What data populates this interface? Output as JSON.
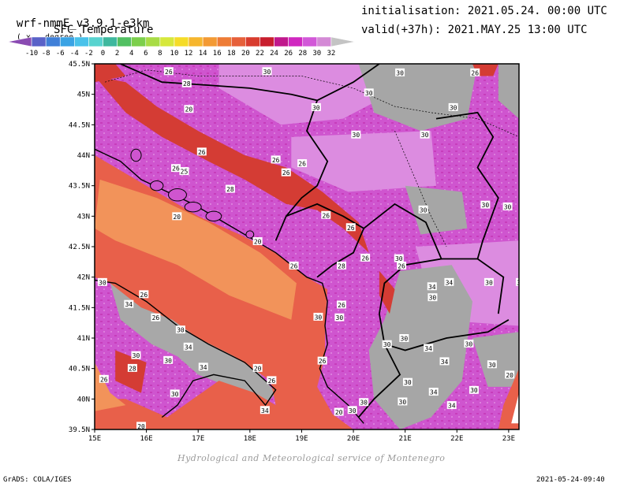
{
  "header": {
    "model": "wrf-nmmE_v3.9.1-e3km",
    "unit": "( x . degree )",
    "subtitle": "SFC Temperature",
    "init": "initialisation: 2021.05.24. 00:00 UTC",
    "valid": "valid(+37h): 2021.MAY.25 13:00 UTC"
  },
  "colorbar": {
    "ticks": [
      "-10",
      "-8",
      "-6",
      "-4",
      "-2",
      "0",
      "2",
      "4",
      "6",
      "8",
      "10",
      "12",
      "14",
      "16",
      "18",
      "20",
      "22",
      "24",
      "26",
      "28",
      "30",
      "32"
    ],
    "colors": [
      "#8a4bb2",
      "#5a62c8",
      "#4080d8",
      "#3aa3e4",
      "#49c2ea",
      "#58d3cf",
      "#3eb89e",
      "#52c062",
      "#7ccf4c",
      "#a8dc46",
      "#d6e83c",
      "#f5dc28",
      "#f6b62e",
      "#f39a34",
      "#ee7c36",
      "#e6603a",
      "#d83c2e",
      "#c81e2e",
      "#c0188c",
      "#d028c0",
      "#d258d8",
      "#d48ad6",
      "#c4c4c4"
    ]
  },
  "map": {
    "lat_labels": [
      "45.5N",
      "45N",
      "44.5N",
      "44N",
      "43.5N",
      "43N",
      "42.5N",
      "42N",
      "41.5N",
      "41N",
      "40.5N",
      "40N",
      "39.5N"
    ],
    "lon_labels": [
      "15E",
      "16E",
      "17E",
      "18E",
      "19E",
      "20E",
      "21E",
      "22E",
      "23E"
    ],
    "contour_labels": [
      {
        "t": "26",
        "lon": 16.43,
        "lat": 45.38
      },
      {
        "t": "28",
        "lon": 16.78,
        "lat": 45.18
      },
      {
        "t": "30",
        "lon": 18.33,
        "lat": 45.38
      },
      {
        "t": "26",
        "lon": 22.35,
        "lat": 45.36
      },
      {
        "t": "30",
        "lon": 20.9,
        "lat": 45.36
      },
      {
        "t": "30",
        "lon": 20.3,
        "lat": 45.03
      },
      {
        "t": "30",
        "lon": 19.28,
        "lat": 44.79
      },
      {
        "t": "30",
        "lon": 21.93,
        "lat": 44.79
      },
      {
        "t": "20",
        "lon": 16.82,
        "lat": 44.76
      },
      {
        "t": "30",
        "lon": 20.05,
        "lat": 44.34
      },
      {
        "t": "30",
        "lon": 21.38,
        "lat": 44.34
      },
      {
        "t": "26",
        "lon": 17.07,
        "lat": 44.06
      },
      {
        "t": "26",
        "lon": 18.5,
        "lat": 43.93
      },
      {
        "t": "26",
        "lon": 19.01,
        "lat": 43.87
      },
      {
        "t": "26",
        "lon": 16.57,
        "lat": 43.79
      },
      {
        "t": "25",
        "lon": 16.73,
        "lat": 43.74
      },
      {
        "t": "26",
        "lon": 18.7,
        "lat": 43.72
      },
      {
        "t": "28",
        "lon": 17.62,
        "lat": 43.45
      },
      {
        "t": "30",
        "lon": 22.55,
        "lat": 43.19
      },
      {
        "t": "30",
        "lon": 22.98,
        "lat": 43.16
      },
      {
        "t": "26",
        "lon": 23.31,
        "lat": 43.14
      },
      {
        "t": "30",
        "lon": 21.35,
        "lat": 43.11
      },
      {
        "t": "26",
        "lon": 19.47,
        "lat": 43.02
      },
      {
        "t": "20",
        "lon": 16.59,
        "lat": 43.0
      },
      {
        "t": "26",
        "lon": 19.95,
        "lat": 42.82
      },
      {
        "t": "20",
        "lon": 18.15,
        "lat": 42.59
      },
      {
        "t": "30",
        "lon": 20.88,
        "lat": 42.31
      },
      {
        "t": "26",
        "lon": 20.23,
        "lat": 42.32
      },
      {
        "t": "26",
        "lon": 18.85,
        "lat": 42.19
      },
      {
        "t": "28",
        "lon": 19.77,
        "lat": 42.19
      },
      {
        "t": "26",
        "lon": 20.93,
        "lat": 42.19
      },
      {
        "t": "30",
        "lon": 15.15,
        "lat": 41.92
      },
      {
        "t": "34",
        "lon": 21.52,
        "lat": 41.85
      },
      {
        "t": "34",
        "lon": 21.85,
        "lat": 41.92
      },
      {
        "t": "30",
        "lon": 22.62,
        "lat": 41.92
      },
      {
        "t": "30",
        "lon": 23.23,
        "lat": 41.92
      },
      {
        "t": "26",
        "lon": 15.95,
        "lat": 41.72
      },
      {
        "t": "34",
        "lon": 15.66,
        "lat": 41.56
      },
      {
        "t": "30",
        "lon": 21.53,
        "lat": 41.67
      },
      {
        "t": "26",
        "lon": 19.77,
        "lat": 41.55
      },
      {
        "t": "26",
        "lon": 16.18,
        "lat": 41.34
      },
      {
        "t": "30",
        "lon": 19.32,
        "lat": 41.35
      },
      {
        "t": "30",
        "lon": 19.73,
        "lat": 41.34
      },
      {
        "t": "30",
        "lon": 16.66,
        "lat": 41.14
      },
      {
        "t": "30",
        "lon": 20.98,
        "lat": 41.0
      },
      {
        "t": "30",
        "lon": 20.65,
        "lat": 40.9
      },
      {
        "t": "34",
        "lon": 16.81,
        "lat": 40.86
      },
      {
        "t": "34",
        "lon": 21.45,
        "lat": 40.84
      },
      {
        "t": "30",
        "lon": 22.23,
        "lat": 40.91
      },
      {
        "t": "30",
        "lon": 15.8,
        "lat": 40.72
      },
      {
        "t": "30",
        "lon": 16.42,
        "lat": 40.64
      },
      {
        "t": "26",
        "lon": 19.4,
        "lat": 40.63
      },
      {
        "t": "34",
        "lon": 21.76,
        "lat": 40.62
      },
      {
        "t": "30",
        "lon": 22.68,
        "lat": 40.57
      },
      {
        "t": "28",
        "lon": 15.73,
        "lat": 40.51
      },
      {
        "t": "34",
        "lon": 17.1,
        "lat": 40.53
      },
      {
        "t": "20",
        "lon": 18.15,
        "lat": 40.51
      },
      {
        "t": "20",
        "lon": 23.02,
        "lat": 40.4
      },
      {
        "t": "26",
        "lon": 15.18,
        "lat": 40.33
      },
      {
        "t": "26",
        "lon": 18.42,
        "lat": 40.31
      },
      {
        "t": "30",
        "lon": 21.05,
        "lat": 40.28
      },
      {
        "t": "30",
        "lon": 22.33,
        "lat": 40.15
      },
      {
        "t": "30",
        "lon": 16.55,
        "lat": 40.09
      },
      {
        "t": "34",
        "lon": 21.55,
        "lat": 40.12
      },
      {
        "t": "30",
        "lon": 20.2,
        "lat": 39.95
      },
      {
        "t": "30",
        "lon": 20.95,
        "lat": 39.96
      },
      {
        "t": "34",
        "lon": 21.9,
        "lat": 39.9
      },
      {
        "t": "34",
        "lon": 18.29,
        "lat": 39.82
      },
      {
        "t": "20",
        "lon": 19.72,
        "lat": 39.79
      },
      {
        "t": "30",
        "lon": 19.98,
        "lat": 39.82
      },
      {
        "t": "20",
        "lon": 15.9,
        "lat": 39.56
      }
    ]
  },
  "footer": {
    "credit": "Hydrological and Meteorological service of Montenegro",
    "grads": "GrADS: COLA/IGES",
    "timestamp": "2021-05-24-09:40"
  }
}
